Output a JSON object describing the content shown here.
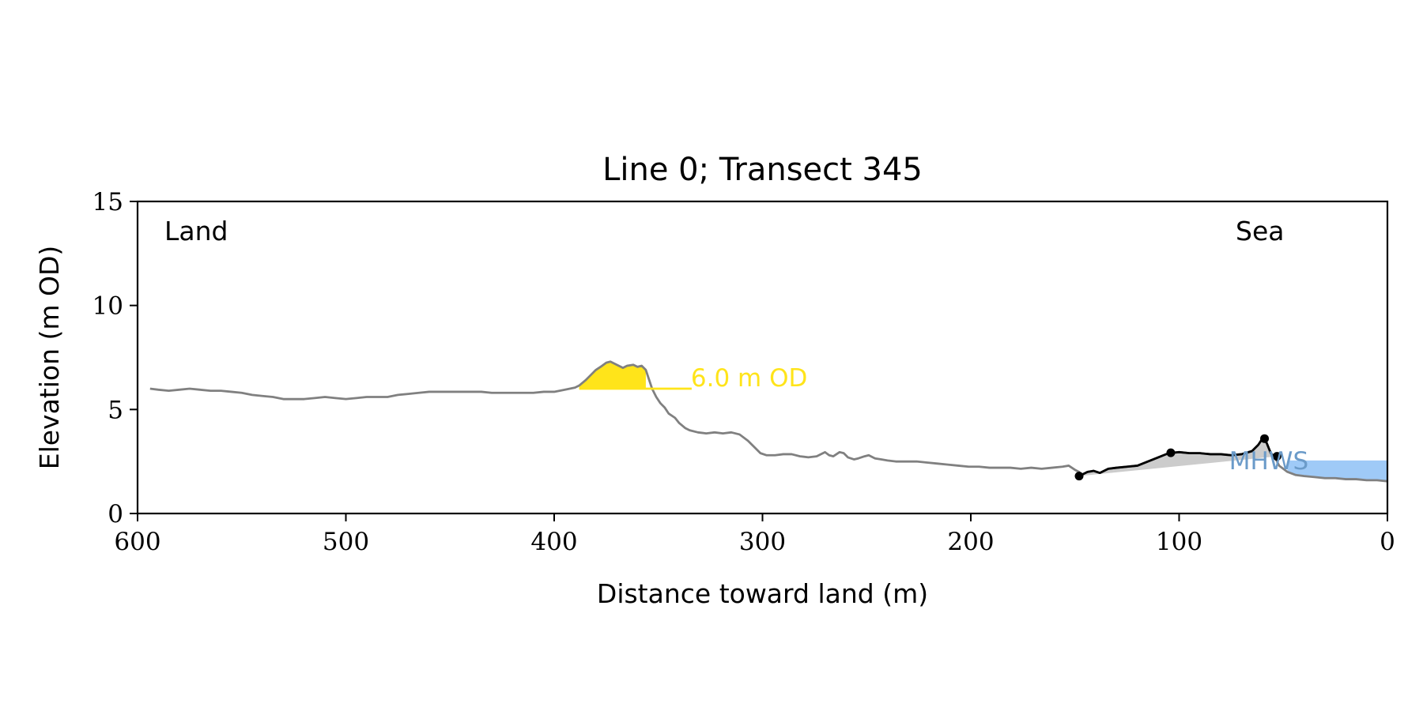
{
  "chart_data": {
    "type": "line",
    "title": "Line 0; Transect 345",
    "xlabel": "Distance toward land (m)",
    "ylabel": "Elevation (m OD)",
    "xlim": [
      600,
      0
    ],
    "ylim": [
      0,
      15
    ],
    "xticks": [
      600,
      500,
      400,
      300,
      200,
      100,
      0
    ],
    "yticks": [
      0,
      5,
      10,
      15
    ],
    "grid": false,
    "corner_labels": {
      "left": "Land",
      "right": "Sea"
    },
    "colors": {
      "profile": "#808080",
      "dune_fill": "#ffe41a",
      "dune_label": "#ffe41a",
      "mhws_fill": "#9fcaf7",
      "mhws_label": "#6b9bc9",
      "beach_fill": "#cccccc",
      "beach_line": "#000000"
    },
    "series": [
      {
        "role": "profile",
        "x": [
          594,
          590,
          585,
          580,
          575,
          570,
          565,
          560,
          555,
          550,
          545,
          540,
          535,
          530,
          525,
          520,
          515,
          510,
          505,
          500,
          495,
          490,
          485,
          480,
          475,
          470,
          465,
          460,
          455,
          450,
          445,
          440,
          435,
          430,
          425,
          420,
          415,
          410,
          405,
          400,
          395,
          390,
          388,
          385,
          382,
          380,
          377,
          375,
          373,
          371,
          369,
          367,
          365,
          362,
          360,
          358,
          356,
          355,
          353,
          351,
          349,
          347,
          345,
          342,
          340,
          337,
          335,
          331,
          327,
          323,
          319,
          315,
          311,
          307,
          303,
          301,
          298,
          294,
          290,
          286,
          282,
          278,
          274,
          270,
          268,
          266,
          263,
          261,
          259,
          256,
          254,
          251,
          249,
          246,
          243,
          240,
          236,
          231,
          226,
          221,
          216,
          211,
          206,
          201,
          196,
          191,
          186,
          181,
          176,
          171,
          166,
          161,
          156,
          153,
          150,
          148
        ],
        "y": [
          6.0,
          5.95,
          5.9,
          5.95,
          6.0,
          5.95,
          5.9,
          5.9,
          5.85,
          5.8,
          5.7,
          5.65,
          5.6,
          5.5,
          5.5,
          5.5,
          5.55,
          5.6,
          5.55,
          5.5,
          5.55,
          5.6,
          5.6,
          5.6,
          5.7,
          5.75,
          5.8,
          5.85,
          5.85,
          5.85,
          5.85,
          5.85,
          5.85,
          5.8,
          5.8,
          5.8,
          5.8,
          5.8,
          5.85,
          5.85,
          5.95,
          6.05,
          6.15,
          6.4,
          6.7,
          6.9,
          7.1,
          7.25,
          7.3,
          7.2,
          7.1,
          7.0,
          7.1,
          7.15,
          7.05,
          7.1,
          6.9,
          6.6,
          6.0,
          5.6,
          5.3,
          5.1,
          4.8,
          4.6,
          4.35,
          4.1,
          4.0,
          3.9,
          3.85,
          3.9,
          3.85,
          3.9,
          3.8,
          3.5,
          3.1,
          2.9,
          2.8,
          2.8,
          2.85,
          2.85,
          2.75,
          2.7,
          2.75,
          2.95,
          2.8,
          2.75,
          2.95,
          2.9,
          2.7,
          2.6,
          2.65,
          2.75,
          2.8,
          2.65,
          2.6,
          2.55,
          2.5,
          2.5,
          2.5,
          2.45,
          2.4,
          2.35,
          2.3,
          2.25,
          2.25,
          2.2,
          2.2,
          2.2,
          2.15,
          2.2,
          2.15,
          2.2,
          2.25,
          2.3,
          2.1,
          2.0
        ]
      },
      {
        "role": "beach",
        "x": [
          148,
          144,
          141,
          138,
          134,
          130,
          125,
          120,
          115,
          110,
          105,
          100,
          95,
          90,
          85,
          80,
          75,
          70,
          65,
          62,
          60,
          58,
          56,
          54,
          52,
          48,
          44,
          40,
          35,
          30,
          25,
          20,
          15,
          10,
          5,
          0
        ],
        "y": [
          1.8,
          2.0,
          2.05,
          1.95,
          2.15,
          2.2,
          2.25,
          2.3,
          2.5,
          2.7,
          2.9,
          2.95,
          2.9,
          2.9,
          2.85,
          2.85,
          2.8,
          2.85,
          3.0,
          3.3,
          3.6,
          3.4,
          2.9,
          2.7,
          2.3,
          2.0,
          1.85,
          1.8,
          1.75,
          1.7,
          1.7,
          1.65,
          1.65,
          1.6,
          1.6,
          1.55
        ]
      }
    ],
    "dune_crest_region": {
      "x_start": 388,
      "x_end": 356,
      "level": 6.0,
      "label": "6.0 m OD",
      "line_end_x": 334
    },
    "mhws": {
      "label": "MHWS",
      "level": 2.55,
      "x_start": 48,
      "x_end": 0
    },
    "beach_markers": [
      {
        "x": 148,
        "y": 1.8
      },
      {
        "x": 104,
        "y": 2.92
      },
      {
        "x": 59,
        "y": 3.6
      },
      {
        "x": 53,
        "y": 2.75
      }
    ]
  }
}
